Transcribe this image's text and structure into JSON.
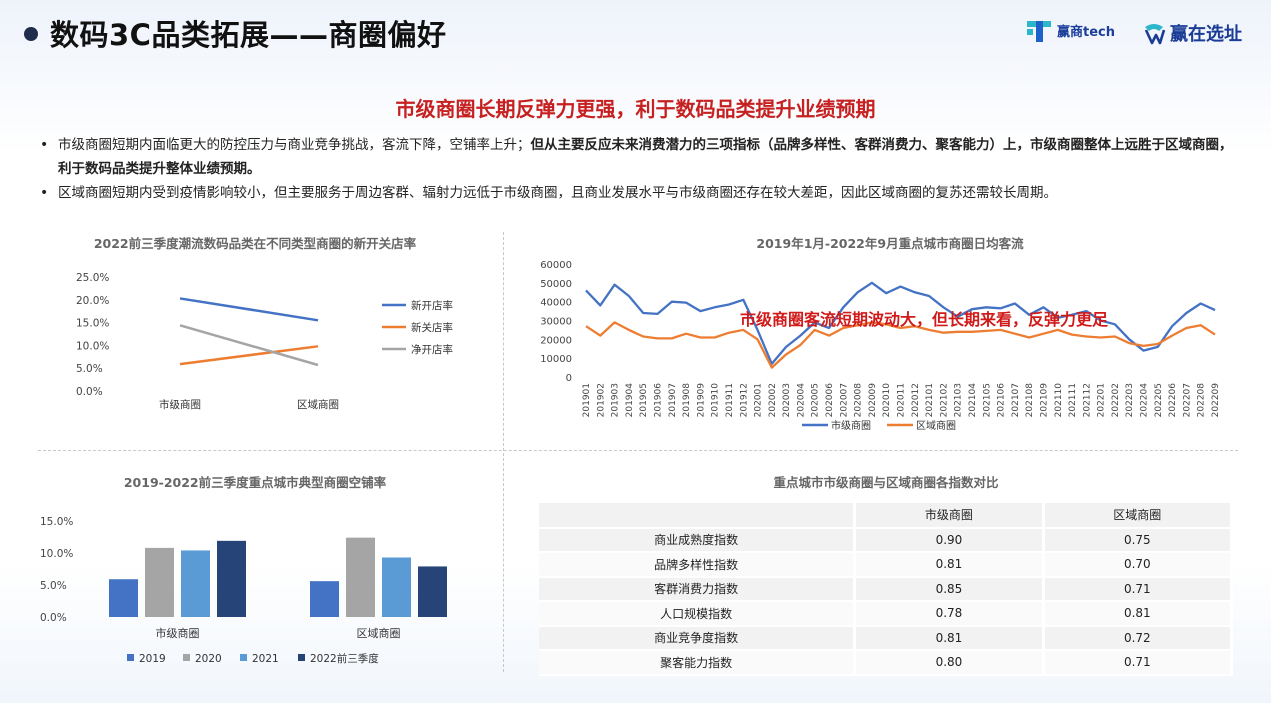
{
  "header": {
    "title": "数码3C品类拓展——商圈偏好",
    "logo1_text": "赢商tech",
    "logo2_text": "赢在选址"
  },
  "headline": "市级商圈长期反弹力更强，利于数码品类提升业绩预期",
  "bullets": {
    "b1_normal": "市级商圈短期内面临更大的防控压力与商业竞争挑战，客流下降，空铺率上升；",
    "b1_bold": "但从主要反应未来消费潜力的三项指标（品牌多样性、客群消费力、聚客能力）上，市级商圈整体上远胜于区域商圈，利于数码品类提升整体业绩预期。",
    "b2": "区域商圈短期内受到疫情影响较小，但主要服务于周边客群、辐射力远低于市级商圈，且商业发展水平与市级商圈还存在较大差距，因此区域商圈的复苏还需较长周期。"
  },
  "chart_data": [
    {
      "type": "line",
      "title": "2022前三季度潮流数码品类在不同类型商圈的新开关店率",
      "categories": [
        "市级商圈",
        "区域商圈"
      ],
      "series": [
        {
          "name": "新开店率",
          "values": [
            20.3,
            15.5
          ],
          "color": "#4472c4"
        },
        {
          "name": "新关店率",
          "values": [
            5.9,
            9.8
          ],
          "color": "#ed7d31"
        },
        {
          "name": "净开店率",
          "values": [
            14.4,
            5.7
          ],
          "color": "#a5a5a5"
        }
      ],
      "yticks": [
        "25.0%",
        "20.0%",
        "15.0%",
        "10.0%",
        "5.0%",
        "0.0%"
      ],
      "ylim": [
        0,
        25
      ],
      "legend": "right"
    },
    {
      "type": "line",
      "title": "2019年1月-2022年9月重点城市商圈日均客流",
      "annotation": "市级商圈客流短期波动大，但长期来看，反弹力更足",
      "x": [
        "201901",
        "201902",
        "201903",
        "201904",
        "201905",
        "201906",
        "201907",
        "201908",
        "201909",
        "201910",
        "201911",
        "201912",
        "202001",
        "202002",
        "202003",
        "202004",
        "202005",
        "202006",
        "202007",
        "202008",
        "202009",
        "202010",
        "202011",
        "202012",
        "202101",
        "202102",
        "202103",
        "202104",
        "202105",
        "202106",
        "202107",
        "202108",
        "202109",
        "202110",
        "202111",
        "202112",
        "202201",
        "202202",
        "202203",
        "202204",
        "202205",
        "202206",
        "202207",
        "202208",
        "202209"
      ],
      "series": [
        {
          "name": "市级商圈",
          "color": "#4472c4",
          "values": [
            46000,
            38000,
            49000,
            43000,
            34000,
            33500,
            40000,
            39500,
            35000,
            37000,
            38500,
            41000,
            25000,
            7000,
            16000,
            22000,
            29000,
            26000,
            37000,
            45000,
            50000,
            44500,
            48000,
            45000,
            43000,
            37000,
            32000,
            36000,
            37000,
            36500,
            39000,
            33000,
            37000,
            31500,
            33000,
            35000,
            30000,
            28000,
            20000,
            14000,
            16000,
            27000,
            34000,
            39000,
            35500
          ]
        },
        {
          "name": "区域商圈",
          "color": "#ed7d31",
          "values": [
            27000,
            22000,
            29000,
            25000,
            21500,
            20500,
            20500,
            23000,
            21000,
            21000,
            23500,
            25000,
            20000,
            5000,
            12000,
            17000,
            25000,
            22000,
            26000,
            27500,
            29000,
            28000,
            26000,
            27000,
            25000,
            23500,
            24000,
            24000,
            24500,
            25000,
            23000,
            21000,
            23000,
            25000,
            22500,
            21500,
            21000,
            21500,
            18000,
            16500,
            17500,
            22000,
            26000,
            27500,
            22500
          ]
        }
      ],
      "yticks": [
        "60000",
        "50000",
        "40000",
        "30000",
        "20000",
        "10000",
        "0"
      ],
      "ylim": [
        0,
        60000
      ],
      "legend": "bottom"
    },
    {
      "type": "bar",
      "title": "2019-2022前三季度重点城市典型商圈空铺率",
      "categories": [
        "市级商圈",
        "区域商圈"
      ],
      "series": [
        {
          "name": "2019",
          "values": [
            5.9,
            5.6
          ],
          "color": "#4472c4"
        },
        {
          "name": "2020",
          "values": [
            10.8,
            12.4
          ],
          "color": "#a5a5a5"
        },
        {
          "name": "2021",
          "values": [
            10.4,
            9.3
          ],
          "color": "#5b9bd5"
        },
        {
          "name": "2022前三季度",
          "values": [
            11.9,
            7.9
          ],
          "color": "#264478"
        }
      ],
      "yticks": [
        "15.0%",
        "10.0%",
        "5.0%",
        "0.0%"
      ],
      "ylim": [
        0,
        15
      ],
      "legend": "bottom"
    },
    {
      "type": "table",
      "title": "重点城市市级商圈与区域商圈各指数对比",
      "columns": [
        "",
        "市级商圈",
        "区域商圈"
      ],
      "rows": [
        [
          "商业成熟度指数",
          "0.90",
          "0.75"
        ],
        [
          "品牌多样性指数",
          "0.81",
          "0.70"
        ],
        [
          "客群消费力指数",
          "0.85",
          "0.71"
        ],
        [
          "人口规模指数",
          "0.78",
          "0.81"
        ],
        [
          "商业竞争度指数",
          "0.81",
          "0.72"
        ],
        [
          "聚客能力指数",
          "0.80",
          "0.71"
        ]
      ]
    }
  ]
}
